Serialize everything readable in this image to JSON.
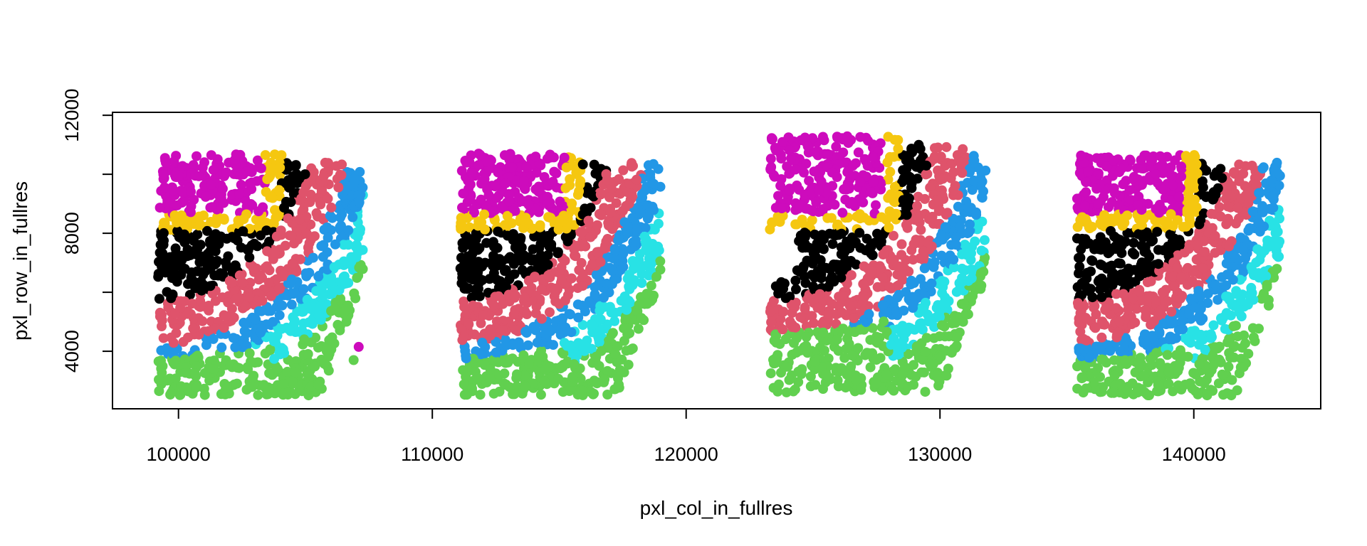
{
  "chart_data": {
    "type": "scatter",
    "title": "",
    "xlabel": "pxl_col_in_fullres",
    "ylabel": "pxl_row_in_fullres",
    "xlim": [
      97400,
      145000
    ],
    "ylim": [
      2050,
      12100
    ],
    "xticks": [
      100000,
      110000,
      120000,
      130000,
      140000
    ],
    "xtick_labels": [
      "100000",
      "110000",
      "120000",
      "130000",
      "140000"
    ],
    "yticks": [
      4000,
      8000,
      12000
    ],
    "ytick_labels": [
      "4000",
      "8000",
      "12000"
    ],
    "yminor_ticks": [
      6000,
      10000
    ],
    "grid": false,
    "legend": "none",
    "colors": {
      "black": "#000000",
      "red": "#DF536B",
      "green": "#61D04F",
      "blue": "#2297E6",
      "cyan": "#28E2E5",
      "magenta": "#CD0BBC",
      "yellow": "#F5C710"
    },
    "sections": [
      {
        "x0": 99200,
        "w": 8100,
        "profile": 0
      },
      {
        "x0": 111100,
        "w": 7900,
        "profile": 1
      },
      {
        "x0": 123300,
        "w": 8500,
        "profile": 2
      },
      {
        "x0": 135400,
        "w": 8000,
        "profile": 0
      }
    ]
  }
}
